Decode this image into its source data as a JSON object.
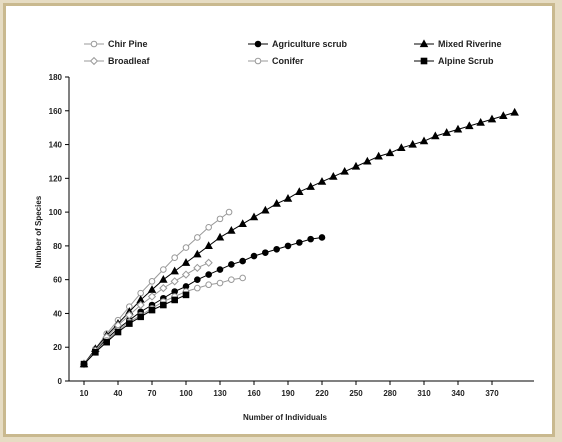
{
  "chart_data": {
    "type": "line",
    "title": "",
    "xlabel": "Number of Individuals",
    "ylabel": "Number of Species",
    "x_ticks": [
      "10",
      "40",
      "70",
      "100",
      "130",
      "160",
      "190",
      "220",
      "250",
      "280",
      "310",
      "340",
      "370"
    ],
    "y_ticks": [
      "0",
      "20",
      "40",
      "60",
      "80",
      "100",
      "120",
      "140",
      "160",
      "180"
    ],
    "xlim": [
      10,
      390
    ],
    "ylim": [
      0,
      180
    ],
    "grid": false,
    "legend_position": "top",
    "series": [
      {
        "name": "Chir Pine",
        "marker": "circle-open",
        "color": "#999999",
        "x": [
          10,
          20,
          30,
          40,
          50,
          60,
          70,
          80,
          90,
          100,
          110,
          120,
          130,
          138
        ],
        "y": [
          10,
          19,
          28,
          36,
          44,
          52,
          59,
          66,
          73,
          79,
          85,
          91,
          96,
          100
        ]
      },
      {
        "name": "Agriculture scrub",
        "marker": "circle-filled",
        "color": "#000000",
        "x": [
          10,
          20,
          30,
          40,
          50,
          60,
          70,
          80,
          90,
          100,
          110,
          120,
          130,
          140,
          150,
          160,
          170,
          180,
          190,
          200,
          210,
          220
        ],
        "y": [
          10,
          18,
          25,
          31,
          36,
          41,
          45,
          49,
          53,
          56,
          60,
          63,
          66,
          69,
          71,
          74,
          76,
          78,
          80,
          82,
          84,
          85
        ]
      },
      {
        "name": "Mixed Riverine",
        "marker": "triangle-filled",
        "color": "#000000",
        "x": [
          10,
          20,
          30,
          40,
          50,
          60,
          70,
          80,
          90,
          100,
          110,
          120,
          130,
          140,
          150,
          160,
          170,
          180,
          190,
          200,
          210,
          220,
          230,
          240,
          250,
          260,
          270,
          280,
          290,
          300,
          310,
          320,
          330,
          340,
          350,
          360,
          370,
          380,
          390
        ],
        "y": [
          10,
          19,
          27,
          34,
          41,
          48,
          54,
          60,
          65,
          70,
          75,
          80,
          85,
          89,
          93,
          97,
          101,
          105,
          108,
          112,
          115,
          118,
          121,
          124,
          127,
          130,
          133,
          135,
          138,
          140,
          142,
          145,
          147,
          149,
          151,
          153,
          155,
          157,
          159
        ]
      },
      {
        "name": "Broadleaf",
        "marker": "diamond-open",
        "color": "#999999",
        "x": [
          10,
          20,
          30,
          40,
          50,
          60,
          70,
          80,
          90,
          100,
          110,
          120
        ],
        "y": [
          10,
          18,
          26,
          33,
          39,
          45,
          50,
          55,
          59,
          63,
          67,
          70
        ]
      },
      {
        "name": "Conifer",
        "marker": "circle-open",
        "color": "#999999",
        "x": [
          10,
          20,
          30,
          40,
          50,
          60,
          70,
          80,
          90,
          100,
          110,
          120,
          130,
          140,
          150
        ],
        "y": [
          10,
          17,
          24,
          30,
          35,
          39,
          43,
          47,
          50,
          53,
          55,
          57,
          58,
          60,
          61
        ]
      },
      {
        "name": "Alpine Scrub",
        "marker": "square-filled",
        "color": "#000000",
        "x": [
          10,
          20,
          30,
          40,
          50,
          60,
          70,
          80,
          90,
          100
        ],
        "y": [
          10,
          17,
          23,
          29,
          34,
          38,
          42,
          45,
          48,
          51
        ]
      }
    ]
  }
}
